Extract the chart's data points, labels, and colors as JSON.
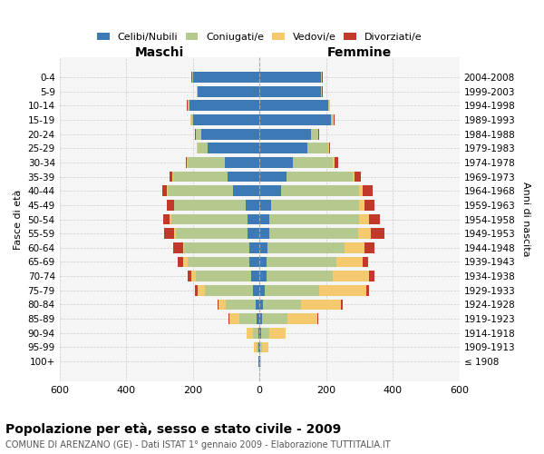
{
  "age_groups": [
    "100+",
    "95-99",
    "90-94",
    "85-89",
    "80-84",
    "75-79",
    "70-74",
    "65-69",
    "60-64",
    "55-59",
    "50-54",
    "45-49",
    "40-44",
    "35-39",
    "30-34",
    "25-29",
    "20-24",
    "15-19",
    "10-14",
    "5-9",
    "0-4"
  ],
  "birth_years": [
    "≤ 1908",
    "1909-1913",
    "1914-1918",
    "1919-1923",
    "1924-1928",
    "1929-1933",
    "1934-1938",
    "1939-1943",
    "1944-1948",
    "1949-1953",
    "1954-1958",
    "1959-1963",
    "1964-1968",
    "1969-1973",
    "1974-1978",
    "1979-1983",
    "1984-1988",
    "1989-1993",
    "1994-1998",
    "1999-2003",
    "2004-2008"
  ],
  "maschi": {
    "celibi": [
      2,
      4,
      4,
      10,
      12,
      20,
      25,
      30,
      30,
      35,
      35,
      40,
      80,
      95,
      105,
      155,
      175,
      200,
      210,
      185,
      200
    ],
    "coniugati": [
      1,
      5,
      15,
      50,
      90,
      145,
      165,
      185,
      195,
      215,
      230,
      215,
      195,
      165,
      110,
      30,
      15,
      5,
      5,
      2,
      2
    ],
    "vedovi": [
      1,
      8,
      20,
      30,
      20,
      20,
      15,
      15,
      5,
      5,
      5,
      2,
      2,
      2,
      2,
      2,
      1,
      1,
      1,
      1,
      1
    ],
    "divorziati": [
      0,
      0,
      0,
      2,
      5,
      8,
      10,
      15,
      30,
      30,
      20,
      20,
      15,
      8,
      5,
      2,
      2,
      1,
      1,
      1,
      1
    ]
  },
  "femmine": {
    "nubili": [
      2,
      3,
      4,
      8,
      10,
      15,
      20,
      20,
      25,
      30,
      30,
      35,
      65,
      80,
      100,
      145,
      155,
      215,
      205,
      185,
      185
    ],
    "coniugate": [
      1,
      5,
      25,
      75,
      115,
      165,
      200,
      210,
      230,
      265,
      270,
      265,
      235,
      200,
      120,
      60,
      20,
      5,
      5,
      2,
      2
    ],
    "vedove": [
      2,
      18,
      50,
      90,
      120,
      140,
      110,
      80,
      60,
      40,
      30,
      15,
      10,
      5,
      5,
      3,
      2,
      2,
      1,
      1,
      1
    ],
    "divorziate": [
      0,
      0,
      0,
      2,
      5,
      10,
      15,
      15,
      30,
      40,
      30,
      30,
      30,
      20,
      10,
      5,
      3,
      2,
      1,
      1,
      1
    ]
  },
  "colors": {
    "celibi": "#3d7ab5",
    "coniugati": "#b5c98e",
    "vedovi": "#f5c96e",
    "divorziati": "#c0392b"
  },
  "title": "Popolazione per età, sesso e stato civile - 2009",
  "subtitle": "COMUNE DI ARENZANO (GE) - Dati ISTAT 1° gennaio 2009 - Elaborazione TUTTITALIA.IT",
  "xlabel_left": "Maschi",
  "xlabel_right": "Femmine",
  "ylabel_left": "Fasce di età",
  "ylabel_right": "Anni di nascita",
  "xlim": 600,
  "legend_labels": [
    "Celibi/Nubili",
    "Coniugati/e",
    "Vedovi/e",
    "Divorziati/e"
  ],
  "bg_color": "#f5f5f5",
  "grid_color": "#cccccc"
}
